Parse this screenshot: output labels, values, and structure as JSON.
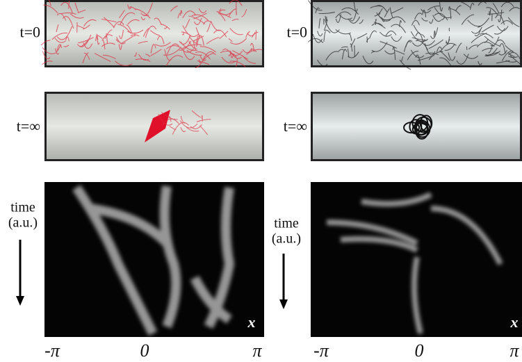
{
  "panels": [
    {
      "rows": [
        {
          "label": "t=0"
        },
        {
          "label": "t=∞"
        }
      ],
      "kymograph": {
        "axis_label": "time",
        "axis_unit": "(a.u.)",
        "x_label": "x",
        "x_ticks": [
          "-π",
          "0",
          "π"
        ]
      }
    },
    {
      "rows": [
        {
          "label": "t=0"
        },
        {
          "label": "t=∞"
        }
      ],
      "kymograph": {
        "axis_label": "time",
        "axis_unit": "(a.u.)",
        "x_label": "x",
        "x_ticks": [
          "-π",
          "0",
          "π"
        ]
      }
    }
  ]
}
